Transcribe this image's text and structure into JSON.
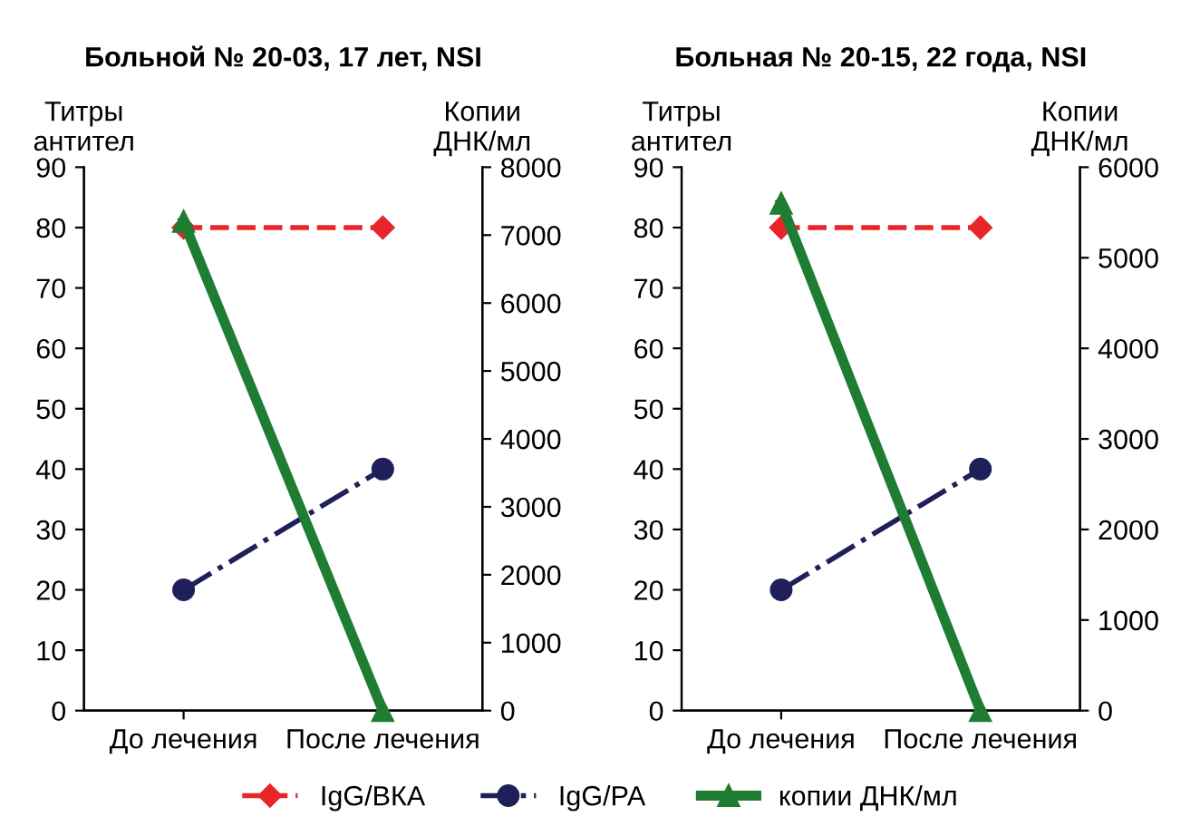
{
  "chart_data": [
    {
      "type": "line",
      "title": "Больной № 20-03, 17 лет, NSI",
      "ylabel": "Титры\nантител",
      "y2label": "Копии\nДНК/мл",
      "categories": [
        "До лечения",
        "После лечения"
      ],
      "ylim": [
        0,
        90
      ],
      "yticks": [
        0,
        10,
        20,
        30,
        40,
        50,
        60,
        70,
        80,
        90
      ],
      "y2lim": [
        0,
        8000
      ],
      "y2ticks": [
        0,
        1000,
        2000,
        3000,
        4000,
        5000,
        6000,
        7000,
        8000
      ],
      "grid": false,
      "legend": "bottom",
      "series": [
        {
          "name": "IgG/ВКА",
          "color": "#e8262a",
          "values": [
            80,
            80
          ],
          "marker": "diamond",
          "line_style": "dashed"
        },
        {
          "name": "IgG/РА",
          "color": "#1f1f5a",
          "values": [
            20,
            40
          ],
          "marker": "circle",
          "line_style": "dashdot"
        },
        {
          "name": "копии ДНК/мл",
          "color": "#1e7d32",
          "values": [
            7200,
            0
          ],
          "marker": "triangle",
          "line_style": "solid",
          "axis": "y2"
        }
      ]
    },
    {
      "type": "line",
      "title": "Больная № 20-15, 22 года, NSI",
      "ylabel": "Титры\nантител",
      "y2label": "Копии\nДНК/мл",
      "categories": [
        "До лечения",
        "После лечения"
      ],
      "ylim": [
        0,
        90
      ],
      "yticks": [
        0,
        10,
        20,
        30,
        40,
        50,
        60,
        70,
        80,
        90
      ],
      "y2lim": [
        0,
        6000
      ],
      "y2ticks": [
        0,
        1000,
        2000,
        3000,
        4000,
        5000,
        6000
      ],
      "grid": false,
      "series": [
        {
          "color": "#e8262a",
          "values": [
            80,
            80
          ],
          "marker": "diamond",
          "line_style": "dashed"
        },
        {
          "color": "#1f1f5a",
          "values": [
            20,
            40
          ],
          "marker": "circle",
          "line_style": "dashdot"
        },
        {
          "color": "#1e7d32",
          "values": [
            5600,
            0
          ],
          "marker": "triangle",
          "line_style": "solid",
          "axis": "y2"
        }
      ]
    }
  ]
}
